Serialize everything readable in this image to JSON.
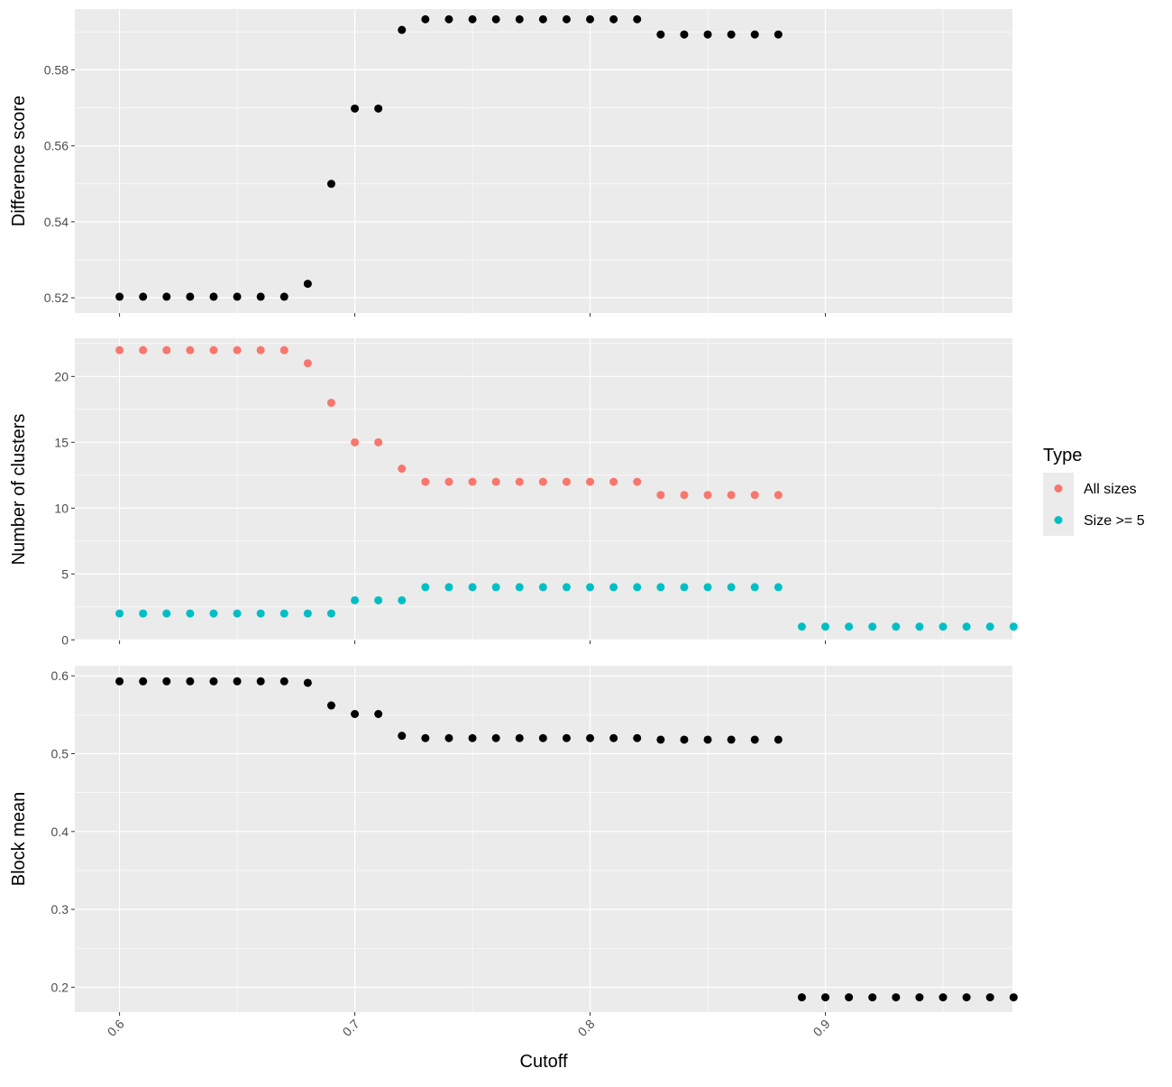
{
  "chart_data": {
    "type": "scatter",
    "xlabel": "Cutoff",
    "x_ticks": [
      "0.6",
      "0.7",
      "0.8",
      "0.9"
    ],
    "x_tick_values": [
      0.6,
      0.7,
      0.8,
      0.9
    ],
    "xlim": [
      0.581,
      0.9795
    ],
    "grid": true,
    "legend": {
      "title": "Type",
      "position": "right",
      "entries": [
        {
          "label": "All sizes",
          "color": "#F8766D"
        },
        {
          "label": "Size >= 5",
          "color": "#00BFC4"
        }
      ]
    },
    "colors": {
      "panel_bg": "#EBEBEB",
      "grid": "#FFFFFF",
      "black_point": "#000000"
    },
    "panels": [
      {
        "id": "difference-score",
        "ylabel": "Difference score",
        "ylim": [
          0.516,
          0.596
        ],
        "y_ticks": [
          0.52,
          0.54,
          0.56,
          0.58
        ],
        "y_tick_labels": [
          "0.52",
          "0.54",
          "0.56",
          "0.58"
        ],
        "series": [
          {
            "color": "#000000",
            "x": [
              0.6,
              0.61,
              0.62,
              0.63,
              0.64,
              0.65,
              0.66,
              0.67,
              0.68,
              0.69,
              0.7,
              0.71,
              0.72,
              0.73,
              0.74,
              0.75,
              0.76,
              0.77,
              0.78,
              0.79,
              0.8,
              0.81,
              0.82,
              0.83,
              0.84,
              0.85,
              0.86,
              0.87,
              0.88
            ],
            "y": [
              0.5203,
              0.5203,
              0.5203,
              0.5203,
              0.5203,
              0.5203,
              0.5203,
              0.5203,
              0.5237,
              0.55,
              0.5698,
              0.5698,
              0.5905,
              0.5933,
              0.5933,
              0.5933,
              0.5933,
              0.5933,
              0.5933,
              0.5933,
              0.5933,
              0.5933,
              0.5933,
              0.5893,
              0.5893,
              0.5893,
              0.5893,
              0.5893,
              0.5893
            ]
          }
        ]
      },
      {
        "id": "number-of-clusters",
        "ylabel": "Number of clusters",
        "ylim": [
          -0.05,
          22.9
        ],
        "y_ticks": [
          0,
          5,
          10,
          15,
          20
        ],
        "y_tick_labels": [
          "0",
          "5",
          "10",
          "15",
          "20"
        ],
        "series": [
          {
            "name": "All sizes",
            "color": "#F8766D",
            "x": [
              0.6,
              0.61,
              0.62,
              0.63,
              0.64,
              0.65,
              0.66,
              0.67,
              0.68,
              0.69,
              0.7,
              0.71,
              0.72,
              0.73,
              0.74,
              0.75,
              0.76,
              0.77,
              0.78,
              0.79,
              0.8,
              0.81,
              0.82,
              0.83,
              0.84,
              0.85,
              0.86,
              0.87,
              0.88
            ],
            "y": [
              22,
              22,
              22,
              22,
              22,
              22,
              22,
              22,
              21,
              18,
              15,
              15,
              13,
              12,
              12,
              12,
              12,
              12,
              12,
              12,
              12,
              12,
              12,
              11,
              11,
              11,
              11,
              11,
              11
            ]
          },
          {
            "name": "Size >= 5",
            "color": "#00BFC4",
            "x": [
              0.6,
              0.61,
              0.62,
              0.63,
              0.64,
              0.65,
              0.66,
              0.67,
              0.68,
              0.69,
              0.7,
              0.71,
              0.72,
              0.73,
              0.74,
              0.75,
              0.76,
              0.77,
              0.78,
              0.79,
              0.8,
              0.81,
              0.82,
              0.83,
              0.84,
              0.85,
              0.86,
              0.87,
              0.88,
              0.89,
              0.9,
              0.91,
              0.92,
              0.93,
              0.94,
              0.95,
              0.96,
              0.97,
              0.98
            ],
            "y": [
              2,
              2,
              2,
              2,
              2,
              2,
              2,
              2,
              2,
              2,
              3,
              3,
              3,
              4,
              4,
              4,
              4,
              4,
              4,
              4,
              4,
              4,
              4,
              4,
              4,
              4,
              4,
              4,
              4,
              1,
              1,
              1,
              1,
              1,
              1,
              1,
              1,
              1,
              1
            ]
          }
        ]
      },
      {
        "id": "block-mean",
        "ylabel": "Block mean",
        "ylim": [
          0.168,
          0.613
        ],
        "y_ticks": [
          0.2,
          0.3,
          0.4,
          0.5,
          0.6
        ],
        "y_tick_labels": [
          "0.2",
          "0.3",
          "0.4",
          "0.5",
          "0.6"
        ],
        "series": [
          {
            "color": "#000000",
            "x": [
              0.6,
              0.61,
              0.62,
              0.63,
              0.64,
              0.65,
              0.66,
              0.67,
              0.68,
              0.69,
              0.7,
              0.71,
              0.72,
              0.73,
              0.74,
              0.75,
              0.76,
              0.77,
              0.78,
              0.79,
              0.8,
              0.81,
              0.82,
              0.83,
              0.84,
              0.85,
              0.86,
              0.87,
              0.88,
              0.89,
              0.9,
              0.91,
              0.92,
              0.93,
              0.94,
              0.95,
              0.96,
              0.97,
              0.98
            ],
            "y": [
              0.593,
              0.593,
              0.593,
              0.593,
              0.593,
              0.593,
              0.593,
              0.593,
              0.591,
              0.562,
              0.551,
              0.551,
              0.523,
              0.52,
              0.52,
              0.52,
              0.52,
              0.52,
              0.52,
              0.52,
              0.52,
              0.52,
              0.52,
              0.518,
              0.518,
              0.518,
              0.518,
              0.518,
              0.518,
              0.187,
              0.187,
              0.187,
              0.187,
              0.187,
              0.187,
              0.187,
              0.187,
              0.187,
              0.187
            ]
          }
        ]
      }
    ]
  }
}
